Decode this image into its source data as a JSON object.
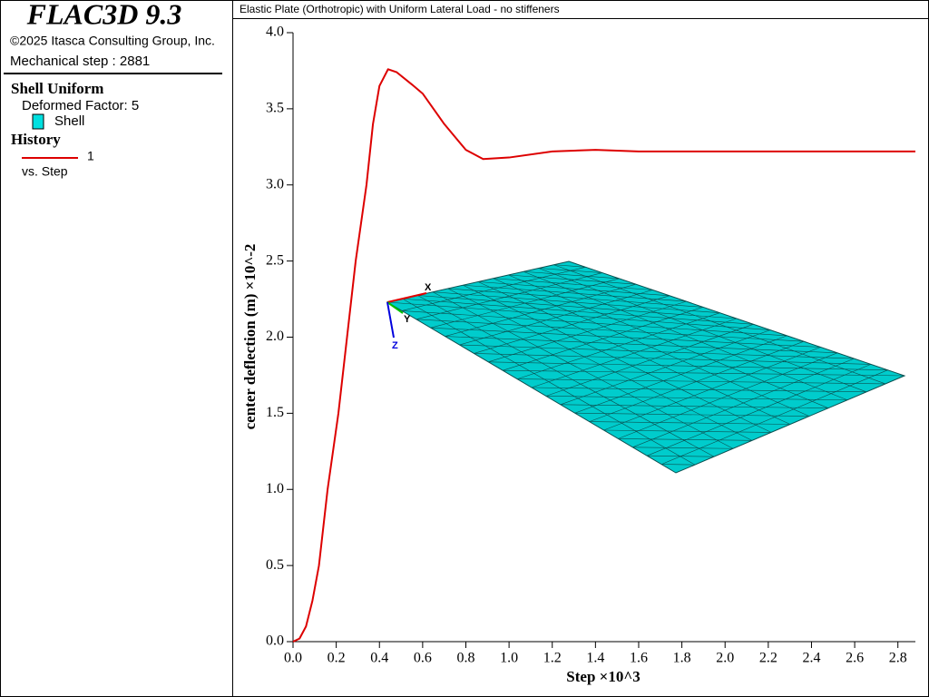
{
  "app": {
    "title": "FLAC3D 9.3",
    "copyright": "©2025 Itasca Consulting Group, Inc.",
    "step_label": "Mechanical step : 2881"
  },
  "legend": {
    "plot_title": "Shell Uniform",
    "deformed": "Deformed Factor: 5",
    "shell": "Shell",
    "history_heading": "History",
    "vs": "vs. Step"
  },
  "triad": {
    "x": "X",
    "y": "Y",
    "z": "Z"
  },
  "chart_data": {
    "type": "line",
    "title": "Elastic Plate (Orthotropic) with Uniform Lateral Load - no stiffeners",
    "xlabel": "Step ×10^3",
    "ylabel": "center deflection (m) ×10^-2",
    "x": [
      0,
      0.03,
      0.06,
      0.09,
      0.12,
      0.16,
      0.21,
      0.25,
      0.29,
      0.34,
      0.37,
      0.4,
      0.44,
      0.48,
      0.55,
      0.6,
      0.7,
      0.8,
      0.88,
      1.0,
      1.2,
      1.4,
      1.6,
      2.0,
      2.4,
      2.881
    ],
    "series": [
      {
        "name": "1",
        "color": "#dd0000",
        "values": [
          0,
          0.02,
          0.1,
          0.27,
          0.5,
          1.0,
          1.5,
          2.0,
          2.5,
          3.0,
          3.4,
          3.65,
          3.76,
          3.74,
          3.66,
          3.6,
          3.4,
          3.23,
          3.17,
          3.18,
          3.22,
          3.23,
          3.22,
          3.22,
          3.22,
          3.22
        ]
      }
    ],
    "xlim": [
      0,
      2.881
    ],
    "ylim": [
      0,
      4.0
    ],
    "xticks": [
      {
        "value": 0,
        "label": "0.0"
      },
      {
        "value": 0.2,
        "label": "0.2"
      },
      {
        "value": 0.4,
        "label": "0.4"
      },
      {
        "value": 0.6,
        "label": "0.6"
      },
      {
        "value": 0.8,
        "label": "0.8"
      },
      {
        "value": 1.0,
        "label": "1.0"
      },
      {
        "value": 1.2,
        "label": "1.2"
      },
      {
        "value": 1.4,
        "label": "1.4"
      },
      {
        "value": 1.6,
        "label": "1.6"
      },
      {
        "value": 1.8,
        "label": "1.8"
      },
      {
        "value": 2.0,
        "label": "2.0"
      },
      {
        "value": 2.2,
        "label": "2.2"
      },
      {
        "value": 2.4,
        "label": "2.4"
      },
      {
        "value": 2.6,
        "label": "2.6"
      },
      {
        "value": 2.8,
        "label": "2.8"
      }
    ],
    "yticks": [
      {
        "value": 0,
        "label": "0.0"
      },
      {
        "value": 0.5,
        "label": "0.5"
      },
      {
        "value": 1.0,
        "label": "1.0"
      },
      {
        "value": 1.5,
        "label": "1.5"
      },
      {
        "value": 2.0,
        "label": "2.0"
      },
      {
        "value": 2.5,
        "label": "2.5"
      },
      {
        "value": 3.0,
        "label": "3.0"
      },
      {
        "value": 3.5,
        "label": "3.5"
      },
      {
        "value": 4.0,
        "label": "4.0"
      }
    ]
  }
}
